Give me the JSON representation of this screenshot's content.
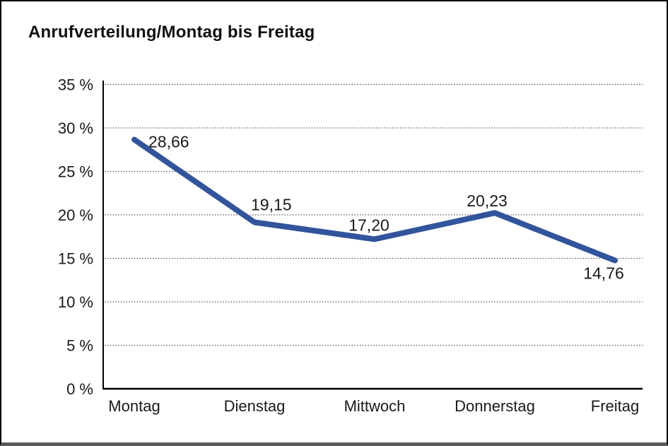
{
  "title": "Anrufverteilung/Montag bis Freitag",
  "chart_data": {
    "type": "line",
    "title": "Anrufverteilung/Montag bis Freitag",
    "categories": [
      "Montag",
      "Dienstag",
      "Mittwoch",
      "Donnerstag",
      "Freitag"
    ],
    "values": [
      28.66,
      19.15,
      17.2,
      20.23,
      14.76
    ],
    "value_labels": [
      "28,66",
      "19,15",
      "17,20",
      "20,23",
      "14,76"
    ],
    "ytick_labels": [
      "0 %",
      "5 %",
      "10 %",
      "15 %",
      "20 %",
      "25 %",
      "30 %",
      "35 %"
    ],
    "ylim": [
      0,
      35
    ],
    "ytick_step": 5,
    "xlabel": "",
    "ylabel": "",
    "grid": "horizontal-dotted",
    "legend": "none",
    "line_color": "#31549b",
    "axis_color": "#000000",
    "gridline_color": "#555555",
    "text_color": "#1a1a1a"
  }
}
